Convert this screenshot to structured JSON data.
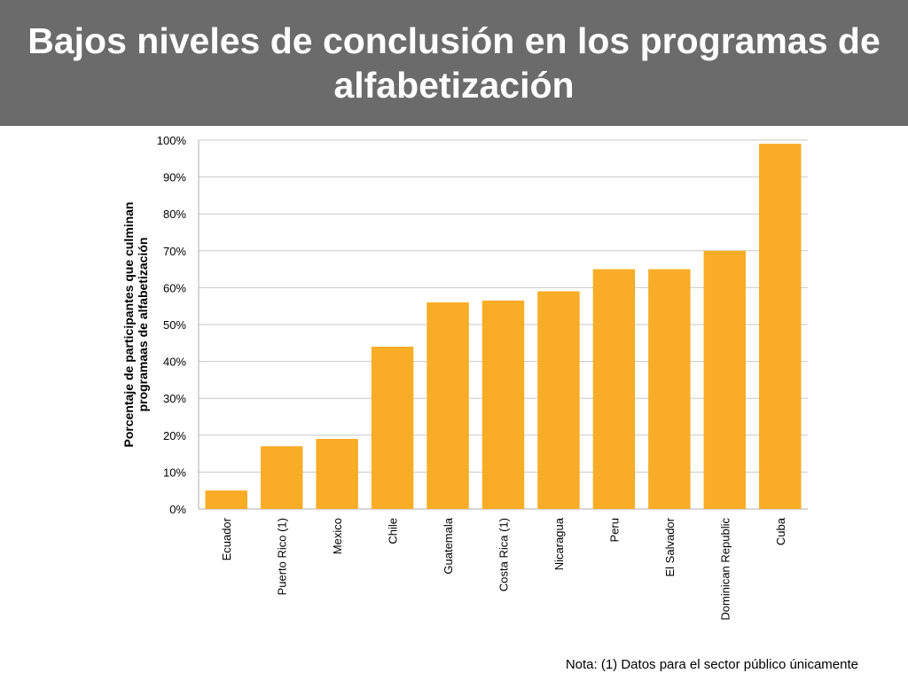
{
  "slide": {
    "title": "Bajos niveles de conclusión en los programas de alfabetización",
    "note": "Nota: (1) Datos para el sector público únicamente"
  },
  "colors": {
    "header_bg": "#6b6b6b",
    "bar": "#f9ac26",
    "grid": "#c8c8c8"
  },
  "chart_data": {
    "type": "bar",
    "categories": [
      "Ecuador",
      "Puerto Rico (1)",
      "Mexico",
      "Chile",
      "Guatemala",
      "Costa Rica (1)",
      "Nicaragua",
      "Peru",
      "El Salvador",
      "Dominican Republic",
      "Cuba"
    ],
    "values": [
      5,
      17,
      19,
      44,
      56,
      56.5,
      59,
      65,
      65,
      70,
      99
    ],
    "ylabel": "Porcentaje de participantes que culminan programaas de alfabetización",
    "ylim": [
      0,
      100
    ],
    "yticks": [
      "0%",
      "10%",
      "20%",
      "30%",
      "40%",
      "50%",
      "60%",
      "70%",
      "80%",
      "90%",
      "100%"
    ],
    "grid": true,
    "legend": "none"
  }
}
